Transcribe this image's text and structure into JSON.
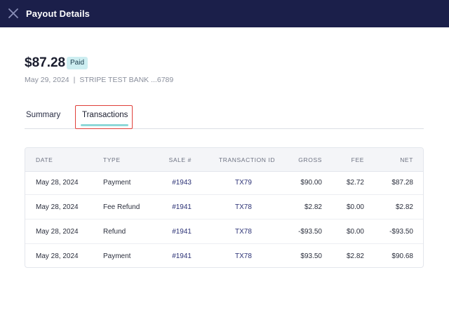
{
  "header": {
    "title": "Payout Details",
    "close_icon": "close-icon"
  },
  "payout": {
    "amount": "$87.28",
    "status": "Paid",
    "date": "May 29, 2024",
    "separator": "|",
    "bank": "STRIPE TEST BANK ...6789"
  },
  "tabs": [
    {
      "label": "Summary",
      "active": false
    },
    {
      "label": "Transactions",
      "active": true
    }
  ],
  "table": {
    "columns": [
      "DATE",
      "TYPE",
      "SALE #",
      "TRANSACTION ID",
      "GROSS",
      "FEE",
      "NET"
    ],
    "rows": [
      {
        "date": "May 28, 2024",
        "type": "Payment",
        "sale": "#1943",
        "txn": "TX79",
        "gross": "$90.00",
        "fee": "$2.72",
        "net": "$87.28"
      },
      {
        "date": "May 28, 2024",
        "type": "Fee Refund",
        "sale": "#1941",
        "txn": "TX78",
        "gross": "$2.82",
        "fee": "$0.00",
        "net": "$2.82"
      },
      {
        "date": "May 28, 2024",
        "type": "Refund",
        "sale": "#1941",
        "txn": "TX78",
        "gross": "-$93.50",
        "fee": "$0.00",
        "net": "-$93.50"
      },
      {
        "date": "May 28, 2024",
        "type": "Payment",
        "sale": "#1941",
        "txn": "TX78",
        "gross": "$93.50",
        "fee": "$2.82",
        "net": "$90.68"
      }
    ]
  },
  "colors": {
    "header_bg": "#1b1f4a",
    "badge_bg": "#cdeef1",
    "tab_underline": "#8ed8d8",
    "highlight_border": "#e0403a",
    "link": "#2b3175"
  }
}
